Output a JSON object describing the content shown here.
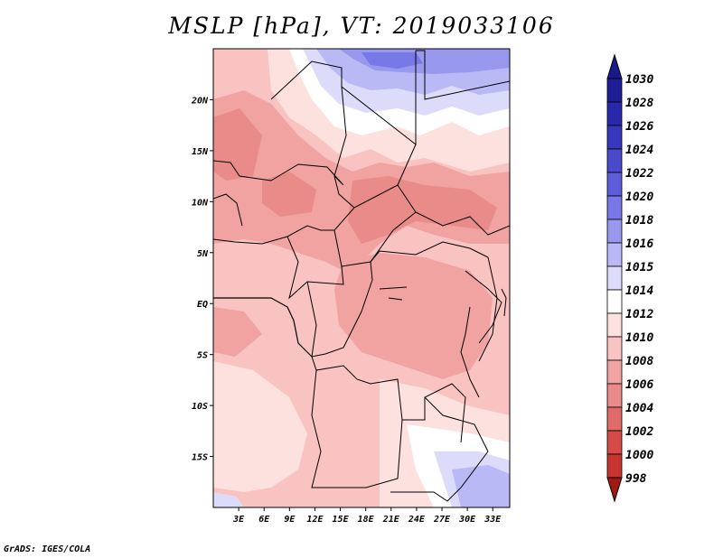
{
  "title": "MSLP [hPa], VT: 2019033106",
  "credit": "GrADS: IGES/COLA",
  "map": {
    "lon_range": [
      0,
      35
    ],
    "lat_range": [
      -20,
      25
    ],
    "lat_labels": [
      {
        "lat": 20,
        "label": "20N"
      },
      {
        "lat": 15,
        "label": "15N"
      },
      {
        "lat": 10,
        "label": "10N"
      },
      {
        "lat": 5,
        "label": "5N"
      },
      {
        "lat": 0,
        "label": "EQ"
      },
      {
        "lat": -5,
        "label": "5S"
      },
      {
        "lat": -10,
        "label": "10S"
      },
      {
        "lat": -15,
        "label": "15S"
      }
    ],
    "lon_labels": [
      {
        "lon": 3,
        "label": "3E"
      },
      {
        "lon": 6,
        "label": "6E"
      },
      {
        "lon": 9,
        "label": "9E"
      },
      {
        "lon": 12,
        "label": "12E"
      },
      {
        "lon": 15,
        "label": "15E"
      },
      {
        "lon": 18,
        "label": "18E"
      },
      {
        "lon": 21,
        "label": "21E"
      },
      {
        "lon": 24,
        "label": "24E"
      },
      {
        "lon": 27,
        "label": "27E"
      },
      {
        "lon": 30,
        "label": "30E"
      },
      {
        "lon": 33,
        "label": "33E"
      }
    ]
  },
  "colorbar": {
    "levels": [
      {
        "label": "1030",
        "color": "#1e1e96"
      },
      {
        "label": "1028",
        "color": "#2828aa"
      },
      {
        "label": "1026",
        "color": "#3737bd"
      },
      {
        "label": "1024",
        "color": "#4a4acd"
      },
      {
        "label": "1022",
        "color": "#5e5edc"
      },
      {
        "label": "1020",
        "color": "#7878e6"
      },
      {
        "label": "1018",
        "color": "#9898ef"
      },
      {
        "label": "1016",
        "color": "#b9b9f5"
      },
      {
        "label": "1015",
        "color": "#dcdcfa"
      },
      {
        "label": "1014",
        "color": "#ffffff"
      },
      {
        "label": "1012",
        "color": "#fde1df"
      },
      {
        "label": "1010",
        "color": "#f9c3c1"
      },
      {
        "label": "1008",
        "color": "#f0a3a1"
      },
      {
        "label": "1006",
        "color": "#e88b89"
      },
      {
        "label": "1004",
        "color": "#e06a67"
      },
      {
        "label": "1002",
        "color": "#d44b47"
      },
      {
        "label": "1000",
        "color": "#c83530"
      },
      {
        "label": "998",
        "color": "#b82620"
      }
    ],
    "top_arrow_color": "#1a1a8a",
    "bottom_arrow_color": "#a01a14"
  }
}
